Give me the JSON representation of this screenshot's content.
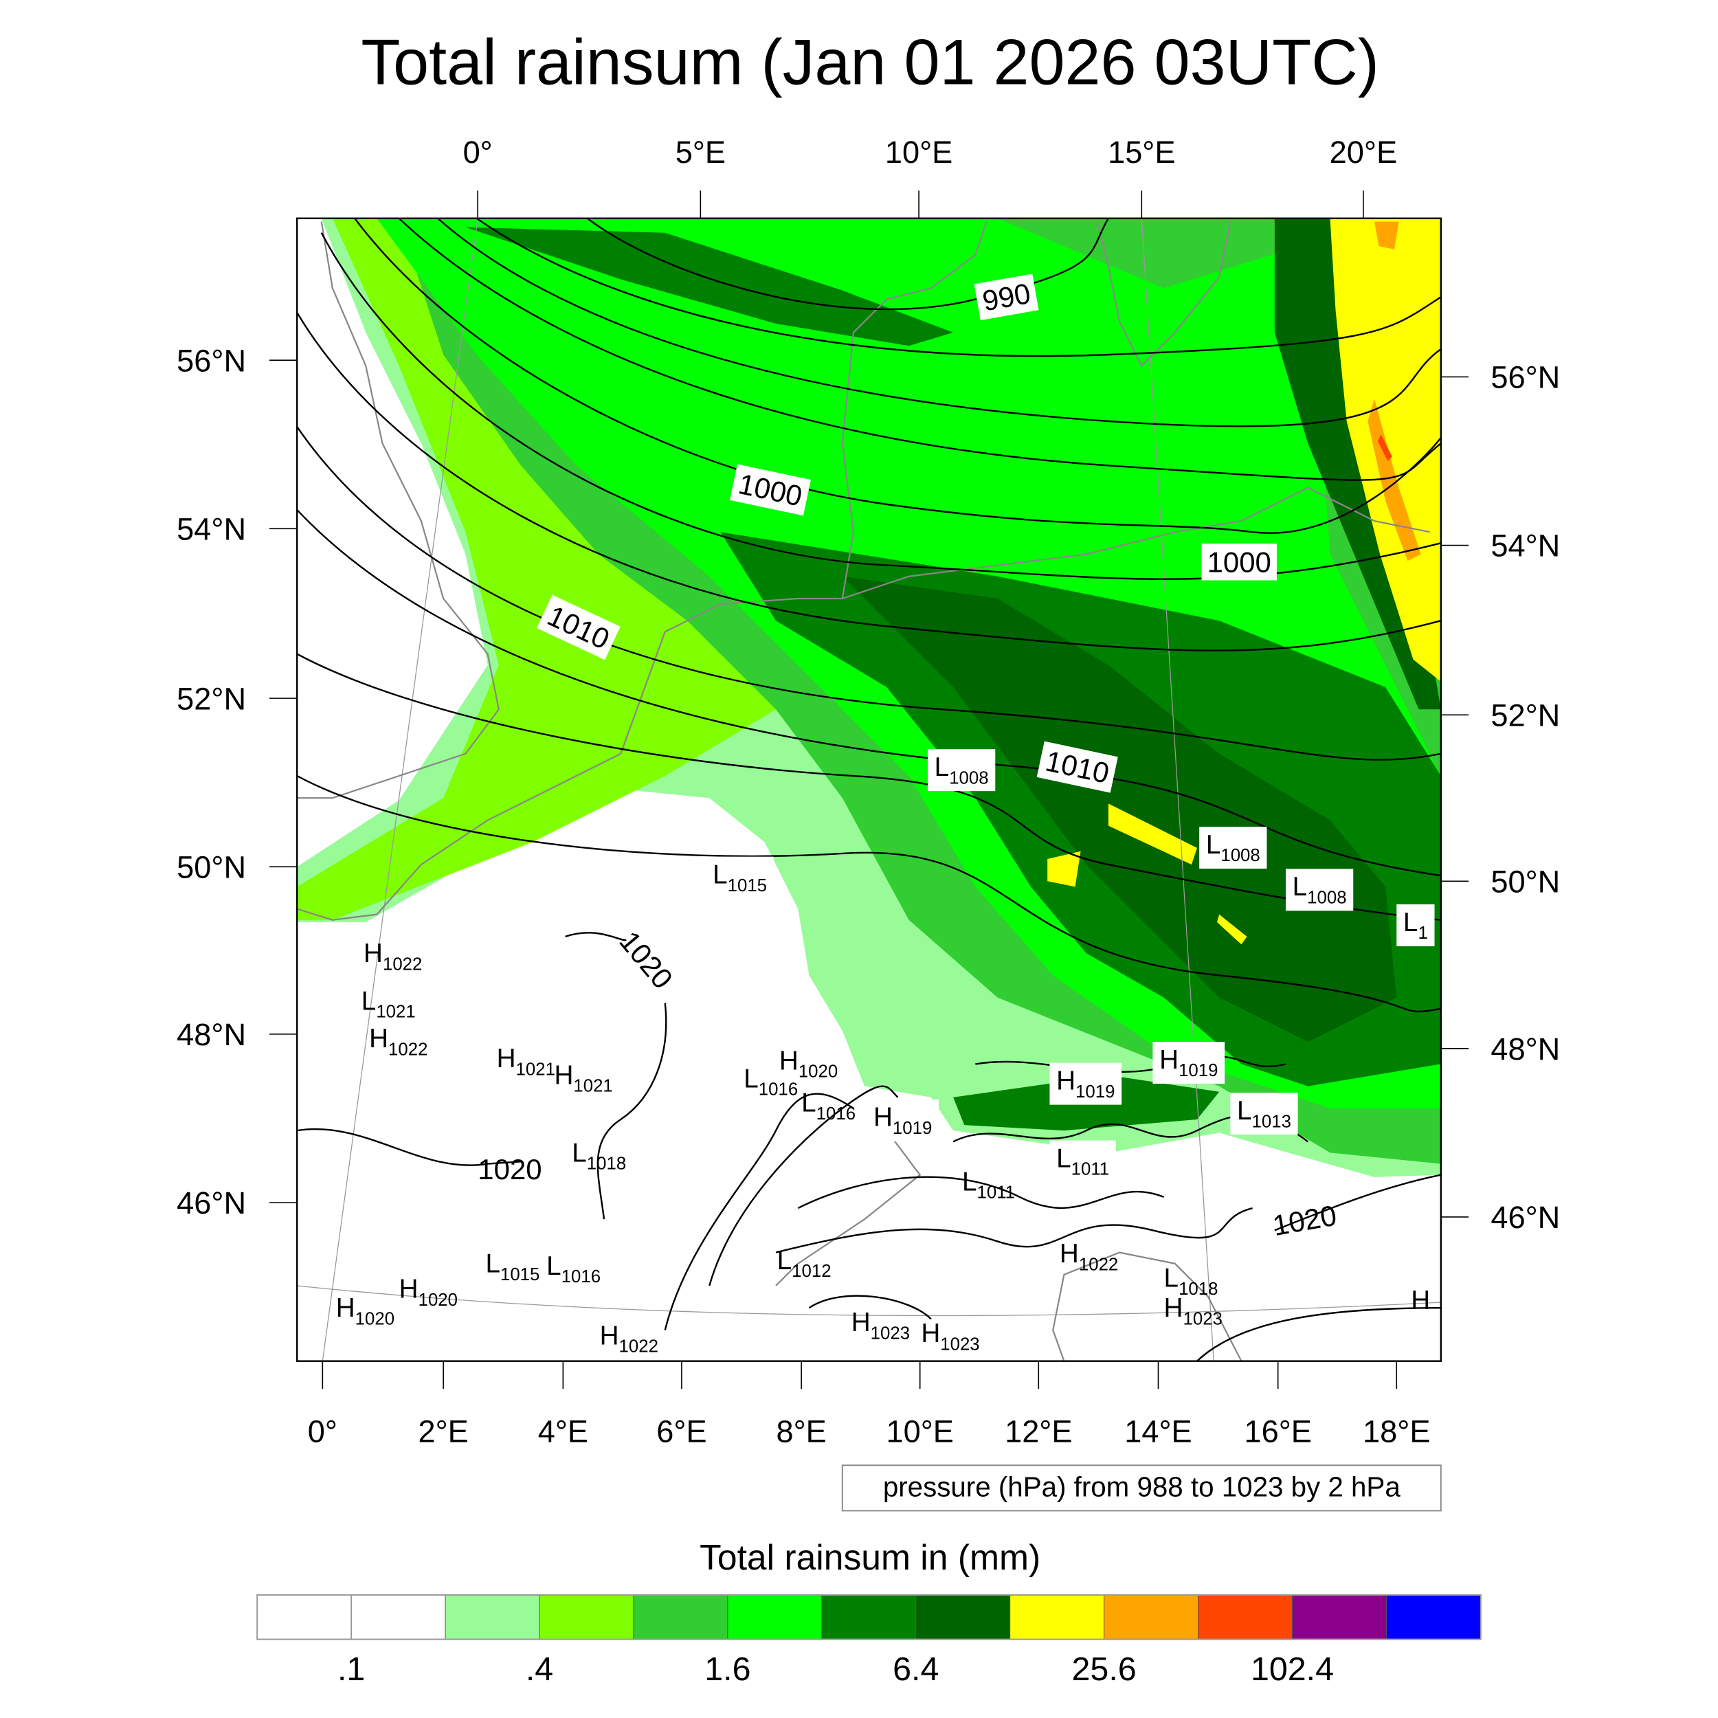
{
  "title": "Total rainsum (Jan 01 2026 03UTC)",
  "axes": {
    "top_lon_labels": [
      "0°",
      "5°E",
      "10°E",
      "15°E",
      "20°E"
    ],
    "left_lat_labels": [
      "56°N",
      "54°N",
      "52°N",
      "50°N",
      "48°N",
      "46°N"
    ],
    "right_lat_labels": [
      "56°N",
      "54°N",
      "52°N",
      "50°N",
      "48°N",
      "46°N"
    ],
    "bottom_lon_labels": [
      "0°",
      "2°E",
      "4°E",
      "6°E",
      "8°E",
      "10°E",
      "12°E",
      "14°E",
      "16°E",
      "18°E"
    ]
  },
  "contour_info": "pressure (hPa) from 988 to 1023 by 2 hPa",
  "contour_labels": [
    {
      "text": "990",
      "boxed": true
    },
    {
      "text": "1000",
      "boxed": true
    },
    {
      "text": "1000",
      "boxed": true
    },
    {
      "text": "1010",
      "boxed": true
    },
    {
      "text": "1010",
      "boxed": true
    },
    {
      "text": "1020",
      "boxed": false
    },
    {
      "text": "1020",
      "boxed": false
    },
    {
      "text": "1020",
      "boxed": false
    }
  ],
  "pressure_centers": [
    {
      "type": "H",
      "value": "1022",
      "boxed": false
    },
    {
      "type": "L",
      "value": "1021",
      "boxed": false
    },
    {
      "type": "H",
      "value": "1022",
      "boxed": false
    },
    {
      "type": "H",
      "value": "1021",
      "boxed": false
    },
    {
      "type": "H",
      "value": "1021",
      "boxed": false
    },
    {
      "type": "L",
      "value": "1018",
      "boxed": false
    },
    {
      "type": "L",
      "value": "1016",
      "boxed": false
    },
    {
      "type": "H",
      "value": "1020",
      "boxed": false
    },
    {
      "type": "L",
      "value": "1016",
      "boxed": false
    },
    {
      "type": "H",
      "value": "1019",
      "boxed": true
    },
    {
      "type": "L",
      "value": "1015",
      "boxed": true
    },
    {
      "type": "L",
      "value": "1008",
      "boxed": true
    },
    {
      "type": "L",
      "value": "1008",
      "boxed": true
    },
    {
      "type": "L",
      "value": "1008",
      "boxed": true
    },
    {
      "type": "L",
      "value": "1",
      "boxed": true
    },
    {
      "type": "H",
      "value": "1019",
      "boxed": true
    },
    {
      "type": "H",
      "value": "1019",
      "boxed": true
    },
    {
      "type": "L",
      "value": "1013",
      "boxed": true
    },
    {
      "type": "L",
      "value": "1011",
      "boxed": true
    },
    {
      "type": "L",
      "value": "1011",
      "boxed": false
    },
    {
      "type": "L",
      "value": "1015",
      "boxed": false
    },
    {
      "type": "L",
      "value": "1016",
      "boxed": false
    },
    {
      "type": "H",
      "value": "1020",
      "boxed": false
    },
    {
      "type": "H",
      "value": "1020",
      "boxed": false
    },
    {
      "type": "L",
      "value": "1012",
      "boxed": false
    },
    {
      "type": "H",
      "value": "1022",
      "boxed": false
    },
    {
      "type": "H",
      "value": "1023",
      "boxed": false
    },
    {
      "type": "H",
      "value": "1023",
      "boxed": false
    },
    {
      "type": "H",
      "value": "1022",
      "boxed": false
    },
    {
      "type": "L",
      "value": "1018",
      "boxed": false
    },
    {
      "type": "H",
      "value": "1023",
      "boxed": false
    },
    {
      "type": "H",
      "value": "",
      "boxed": false
    }
  ],
  "colorbar": {
    "title": "Total rainsum in (mm)",
    "labels": [
      ".1",
      ".4",
      "1.6",
      "6.4",
      "25.6",
      "102.4"
    ],
    "colors": [
      "#ffffff",
      "#ffffff",
      "#98fb98",
      "#7fff00",
      "#32cd32",
      "#00ff00",
      "#008000",
      "#006400",
      "#ffff00",
      "#ffa500",
      "#ff4500",
      "#8b008b",
      "#0000ff"
    ]
  }
}
